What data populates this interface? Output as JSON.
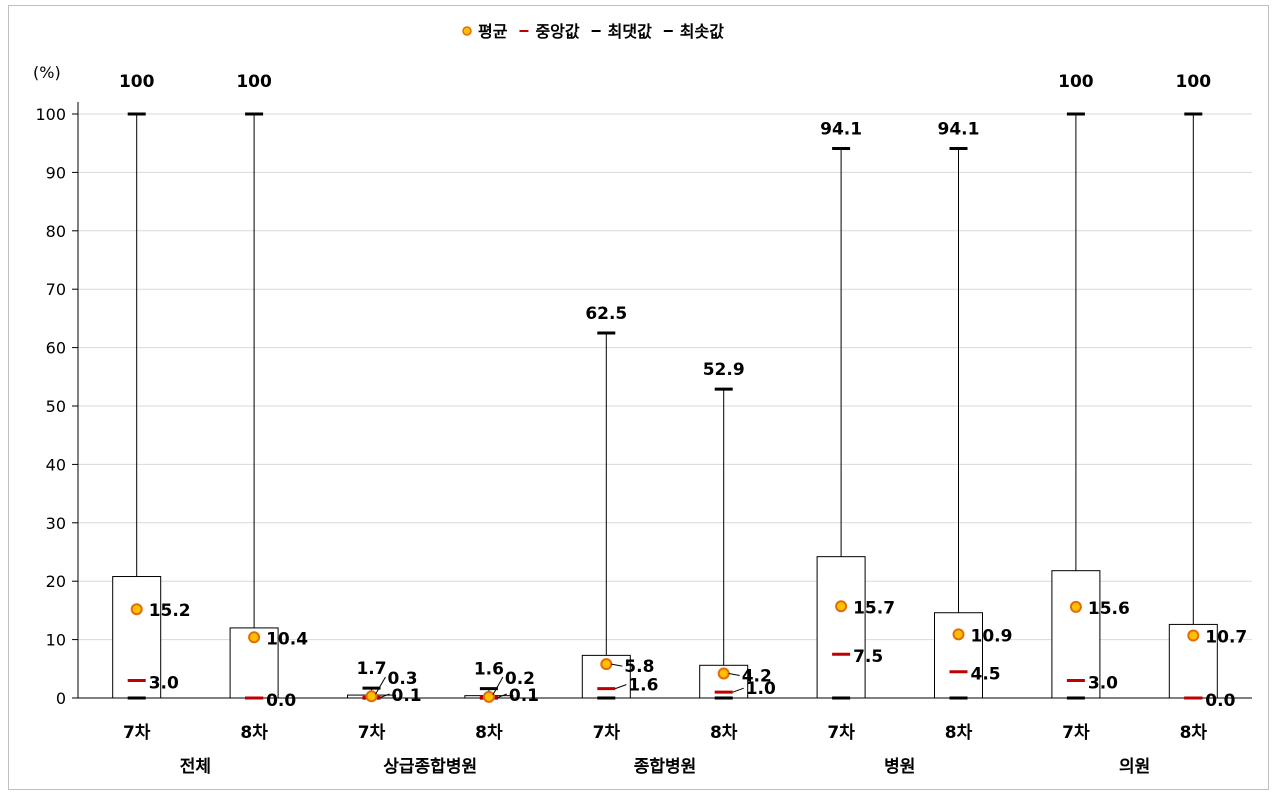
{
  "chart_data": {
    "type": "boxplot",
    "title": "",
    "ylabel": "(%)",
    "ylim": [
      0,
      100
    ],
    "yticks": [
      0,
      10,
      20,
      30,
      40,
      50,
      60,
      70,
      80,
      90,
      100
    ],
    "grid": true,
    "legend_position": "top-center",
    "legend": [
      {
        "name": "평균",
        "marker": "circle"
      },
      {
        "name": "중앙값",
        "marker": "dash-red"
      },
      {
        "name": "최댓값",
        "marker": "dash-black"
      },
      {
        "name": "최솟값",
        "marker": "dash-black"
      }
    ],
    "groups": [
      {
        "name": "전체",
        "items": [
          {
            "label": "7차",
            "max": 100,
            "q3": 20.8,
            "mean": 15.2,
            "median": 3.0,
            "min": 0.0,
            "q1": 0.0,
            "max_label": "100",
            "mean_label": "15.2",
            "median_label": "3.0",
            "min_label": ""
          },
          {
            "label": "8차",
            "max": 100,
            "q3": 12.0,
            "mean": 10.4,
            "median": 0.0,
            "min": 0.0,
            "q1": 0.0,
            "max_label": "100",
            "mean_label": "10.4",
            "median_label": "0.0",
            "min_label": ""
          }
        ]
      },
      {
        "name": "상급종합병원",
        "items": [
          {
            "label": "7차",
            "max": 1.7,
            "q3": 0.5,
            "mean": 0.3,
            "median": 0.1,
            "min": 0.0,
            "q1": 0.0,
            "max_label": "1.7",
            "mean_label": "0.3",
            "median_label": "0.1",
            "min_label": ""
          },
          {
            "label": "8차",
            "max": 1.6,
            "q3": 0.4,
            "mean": 0.2,
            "median": 0.1,
            "min": 0.0,
            "q1": 0.0,
            "max_label": "1.6",
            "mean_label": "0.2",
            "median_label": "0.1",
            "min_label": ""
          }
        ]
      },
      {
        "name": "종합병원",
        "items": [
          {
            "label": "7차",
            "max": 62.5,
            "q3": 7.3,
            "mean": 5.8,
            "median": 1.6,
            "min": 0.0,
            "q1": 0.0,
            "max_label": "62.5",
            "mean_label": "5.8",
            "median_label": "1.6",
            "min_label": ""
          },
          {
            "label": "8차",
            "max": 52.9,
            "q3": 5.6,
            "mean": 4.2,
            "median": 1.0,
            "min": 0.0,
            "q1": 0.0,
            "max_label": "52.9",
            "mean_label": "4.2",
            "median_label": "1.0",
            "min_label": ""
          }
        ]
      },
      {
        "name": "병원",
        "items": [
          {
            "label": "7차",
            "max": 94.1,
            "q3": 24.2,
            "mean": 15.7,
            "median": 7.5,
            "min": 0.0,
            "q1": 0.0,
            "max_label": "94.1",
            "mean_label": "15.7",
            "median_label": "7.5",
            "min_label": ""
          },
          {
            "label": "8차",
            "max": 94.1,
            "q3": 14.6,
            "mean": 10.9,
            "median": 4.5,
            "min": 0.0,
            "q1": 0.0,
            "max_label": "94.1",
            "mean_label": "10.9",
            "median_label": "4.5",
            "min_label": ""
          }
        ]
      },
      {
        "name": "의원",
        "items": [
          {
            "label": "7차",
            "max": 100,
            "q3": 21.8,
            "mean": 15.6,
            "median": 3.0,
            "min": 0.0,
            "q1": 0.0,
            "max_label": "100",
            "mean_label": "15.6",
            "median_label": "3.0",
            "min_label": ""
          },
          {
            "label": "8차",
            "max": 100,
            "q3": 12.6,
            "mean": 10.7,
            "median": 0.0,
            "min": 0.0,
            "q1": 0.0,
            "max_label": "100",
            "mean_label": "10.7",
            "median_label": "0.0",
            "min_label": ""
          }
        ]
      }
    ]
  },
  "colors": {
    "mean_fill": "#FFC000",
    "mean_stroke": "#E36C09",
    "median": "#C00000",
    "axis": "#000000",
    "grid": "#d9d9d9",
    "box": "#000000"
  }
}
